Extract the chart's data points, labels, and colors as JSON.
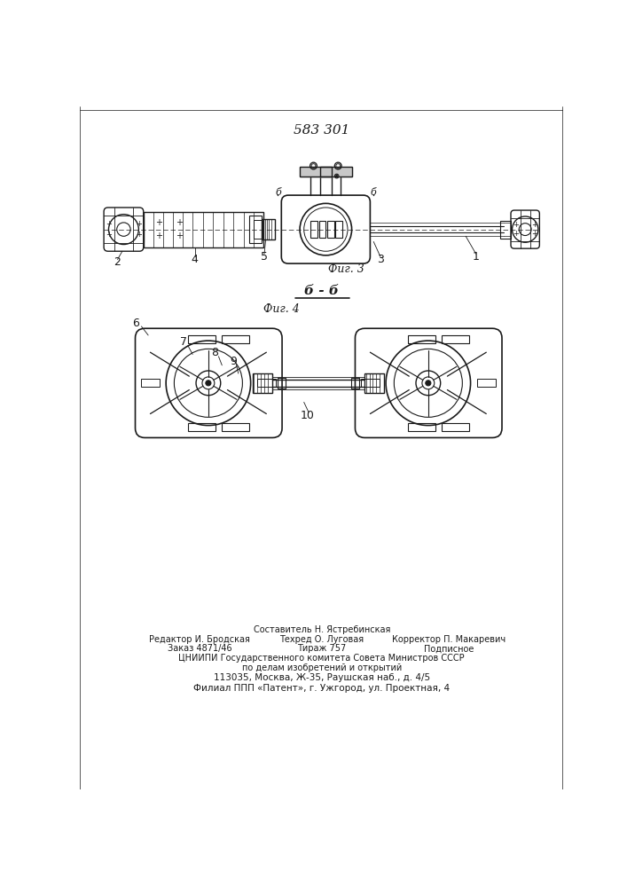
{
  "title": "583 301",
  "bg_color": "#ffffff",
  "line_color": "#1a1a1a",
  "fig3_label": "Фиг. 3",
  "fig4_label": "Фиг. 4",
  "section_label": "б - б",
  "footer_col1_line1": "Редактор И. Бродская",
  "footer_col1_line2": "Заказ 4871/46",
  "footer_col2_head": "Составитель Н. Ястребинская",
  "footer_col2_line1": "Техред О. Луговая",
  "footer_col2_line2": "Тираж 757",
  "footer_col3_line1": "Корректор П. Макаревич",
  "footer_col3_line2": "Подписное",
  "footer_cniip": "ЦНИИПИ Государственного комитета Совета Министров СССР",
  "footer_po": "по делам изобретений и открытий",
  "footer_addr": "113035, Москва, Ж-35, Раушская наб., д. 4/5",
  "footer_filial": "Филиал ППП «Патент», г. Ужгород, ул. Проектная, 4"
}
